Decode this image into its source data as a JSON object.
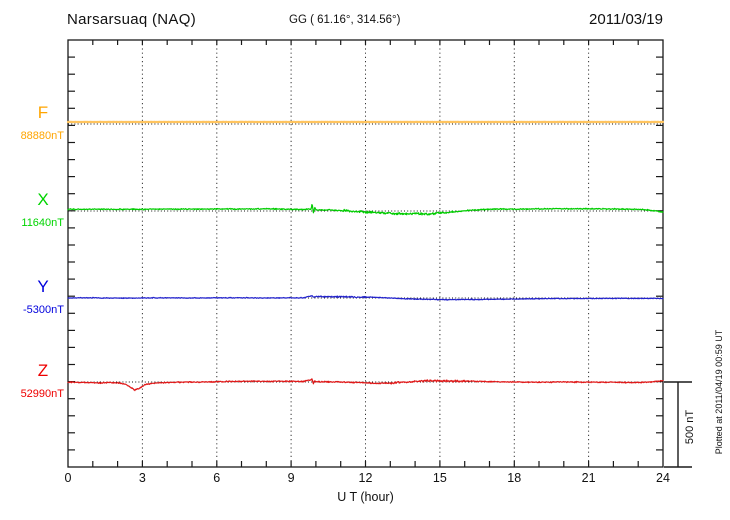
{
  "header": {
    "station": "Narsarsuaq (NAQ)",
    "coords": "GG ( 61.16°, 314.56°)",
    "date": "2011/03/19"
  },
  "axes": {
    "x_label": "U T (hour)",
    "x_range": [
      0,
      24
    ],
    "x_ticks": [
      0,
      3,
      6,
      9,
      12,
      15,
      18,
      21,
      24
    ],
    "minor_tick_every_hours": 1,
    "grid_hours": [
      3,
      6,
      9,
      12,
      15,
      18,
      21
    ],
    "y_minor_tick_nT": 100
  },
  "scale_bar": {
    "label": "500 nT",
    "nT": 500
  },
  "footer_note": "Plotted at 2011/04/19 00:59 UT",
  "colors": {
    "frame": "#1a1a1a",
    "grid": "#333333",
    "baseline": "#111111",
    "f_label": "#FFA500",
    "f_trace": "#FFC45E",
    "x_label": "#00D400",
    "x_trace": "#00CC00",
    "y_label": "#0000DD",
    "y_trace": "#2222CC",
    "z_label": "#EE0000",
    "z_trace": "#E01818"
  },
  "chart_data": {
    "type": "line",
    "title": "Narsarsuaq (NAQ) magnetogram 2011/03/19",
    "xlabel": "U T (hour)",
    "x_unit": "hour",
    "x_range": [
      0,
      24
    ],
    "y_unit": "nT",
    "scale_bar_nT": 500,
    "grid": "dotted, vertical every 3 h, dotted horizontal baseline per component",
    "series": [
      {
        "name": "F",
        "baseline_label": "88880nT",
        "baseline_nT": 88880,
        "label_color": "#FFA500",
        "trace_color": "#FFC45E",
        "width": 2.2,
        "noise_amp_nT": 1,
        "points": [
          [
            0,
            12
          ],
          [
            24,
            12
          ]
        ]
      },
      {
        "name": "X",
        "baseline_label": "11640nT",
        "baseline_nT": 11640,
        "label_color": "#00D400",
        "trace_color": "#00CC00",
        "width": 1.2,
        "noise_amp_nT": 4,
        "noise_boost": {
          "from": 11,
          "to": 15.5,
          "factor": 2
        },
        "points": [
          [
            0,
            10
          ],
          [
            1,
            11
          ],
          [
            2,
            10
          ],
          [
            3,
            10
          ],
          [
            4,
            11
          ],
          [
            5,
            11
          ],
          [
            6,
            12
          ],
          [
            7,
            12
          ],
          [
            8,
            13
          ],
          [
            9,
            10
          ],
          [
            9.5,
            9
          ],
          [
            9.8,
            12
          ],
          [
            9.85,
            45
          ],
          [
            9.9,
            -12
          ],
          [
            9.95,
            22
          ],
          [
            10,
            6
          ],
          [
            10.5,
            7
          ],
          [
            11,
            3
          ],
          [
            11.5,
            -1
          ],
          [
            12,
            -7
          ],
          [
            12.5,
            -11
          ],
          [
            13,
            -14
          ],
          [
            13.5,
            -16
          ],
          [
            14,
            -15
          ],
          [
            14.5,
            -18
          ],
          [
            15,
            -11
          ],
          [
            15.5,
            -6
          ],
          [
            16,
            2
          ],
          [
            16.5,
            7
          ],
          [
            17,
            10
          ],
          [
            17.5,
            12
          ],
          [
            18,
            11
          ],
          [
            19,
            13
          ],
          [
            20,
            13
          ],
          [
            21,
            13
          ],
          [
            22,
            12
          ],
          [
            23,
            10
          ],
          [
            23.5,
            5
          ],
          [
            23.8,
            -2
          ],
          [
            24,
            -7
          ]
        ]
      },
      {
        "name": "Y",
        "baseline_label": "-5300nT",
        "baseline_nT": -5300,
        "label_color": "#0000DD",
        "trace_color": "#2222CC",
        "width": 1.2,
        "noise_amp_nT": 3,
        "noise_boost": {
          "from": 9.8,
          "to": 12,
          "factor": 1.7
        },
        "points": [
          [
            0,
            0
          ],
          [
            1,
            1
          ],
          [
            2,
            -1
          ],
          [
            3,
            0
          ],
          [
            4,
            1
          ],
          [
            5,
            0
          ],
          [
            6,
            1
          ],
          [
            7,
            1
          ],
          [
            8,
            0
          ],
          [
            9,
            1
          ],
          [
            9.5,
            1
          ],
          [
            9.85,
            14
          ],
          [
            9.9,
            4
          ],
          [
            10,
            9
          ],
          [
            10.5,
            7
          ],
          [
            11,
            8
          ],
          [
            11.5,
            5
          ],
          [
            12,
            6
          ],
          [
            12.5,
            3
          ],
          [
            13,
            0
          ],
          [
            13.5,
            -4
          ],
          [
            14,
            -6
          ],
          [
            14.5,
            -8
          ],
          [
            15,
            -9
          ],
          [
            15.5,
            -10
          ],
          [
            16,
            -9
          ],
          [
            16.5,
            -9
          ],
          [
            17,
            -8
          ],
          [
            17.5,
            -7
          ],
          [
            18,
            -6
          ],
          [
            19,
            -4
          ],
          [
            20,
            -3
          ],
          [
            21,
            -3
          ],
          [
            22,
            -2
          ],
          [
            23,
            -2
          ],
          [
            24,
            -3
          ]
        ]
      },
      {
        "name": "Z",
        "baseline_label": "52990nT",
        "baseline_nT": 52990,
        "label_color": "#EE0000",
        "trace_color": "#E01818",
        "width": 1.2,
        "noise_amp_nT": 4,
        "noise_boost": {
          "from": 13,
          "to": 16,
          "factor": 1.8
        },
        "points": [
          [
            0,
            -1
          ],
          [
            0.5,
            -2
          ],
          [
            1,
            -4
          ],
          [
            1.3,
            -6
          ],
          [
            1.6,
            -3
          ],
          [
            2,
            -5
          ],
          [
            2.3,
            -12
          ],
          [
            2.5,
            -28
          ],
          [
            2.7,
            -48
          ],
          [
            2.9,
            -35
          ],
          [
            3.1,
            -16
          ],
          [
            3.4,
            -7
          ],
          [
            4,
            -3
          ],
          [
            4.5,
            -1
          ],
          [
            5,
            0
          ],
          [
            5.5,
            0
          ],
          [
            6,
            2
          ],
          [
            6.5,
            3
          ],
          [
            7,
            4
          ],
          [
            7.5,
            5
          ],
          [
            8,
            4
          ],
          [
            8.5,
            5
          ],
          [
            9,
            4
          ],
          [
            9.5,
            3
          ],
          [
            9.85,
            16
          ],
          [
            9.9,
            -10
          ],
          [
            9.95,
            8
          ],
          [
            10,
            2
          ],
          [
            10.5,
            1
          ],
          [
            11,
            0
          ],
          [
            11.5,
            -2
          ],
          [
            12,
            -5
          ],
          [
            12.5,
            -8
          ],
          [
            13,
            -6
          ],
          [
            13.5,
            -2
          ],
          [
            14,
            3
          ],
          [
            14.5,
            6
          ],
          [
            15,
            7
          ],
          [
            15.5,
            6
          ],
          [
            16,
            5
          ],
          [
            16.5,
            4
          ],
          [
            17,
            2
          ],
          [
            17.5,
            1
          ],
          [
            18,
            0
          ],
          [
            19,
            -1
          ],
          [
            20,
            0
          ],
          [
            21,
            -1
          ],
          [
            22,
            -1
          ],
          [
            22.5,
            -3
          ],
          [
            23,
            -3
          ],
          [
            23.5,
            0
          ],
          [
            23.8,
            5
          ],
          [
            24,
            8
          ]
        ]
      }
    ]
  }
}
